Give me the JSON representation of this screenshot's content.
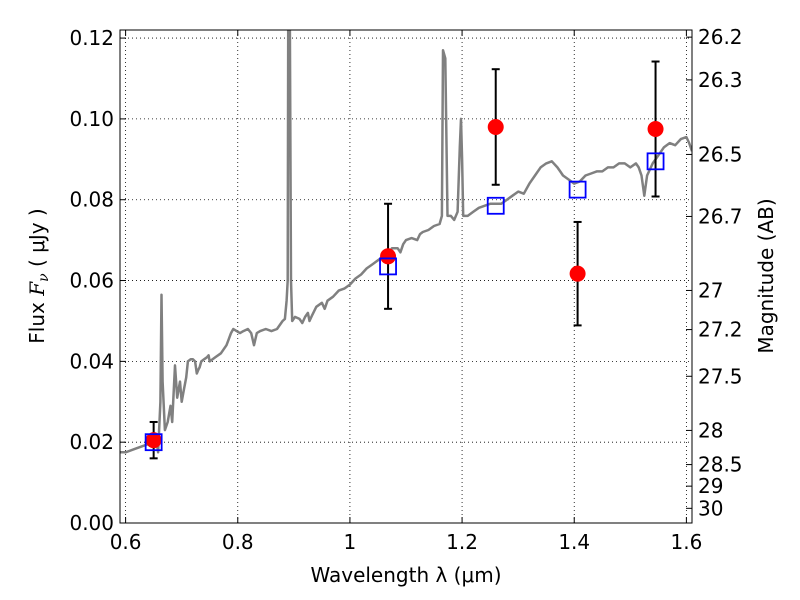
{
  "chart_data": {
    "type": "scatter",
    "xlabel": "Wavelength  λ (μm)",
    "ylabel": "Flux  F_ν  ( μJy )",
    "ylabel_parts": {
      "pre": "Flux  ",
      "var": "F",
      "sub": "ν",
      "post": "  ( μJy )"
    },
    "y2label": "Magnitude (AB)",
    "xlim": [
      0.59,
      1.61
    ],
    "ylim": [
      0.0,
      0.122
    ],
    "grid": true,
    "x_ticks": [
      {
        "v": 0.6,
        "label": "0.6"
      },
      {
        "v": 0.8,
        "label": "0.8"
      },
      {
        "v": 1.0,
        "label": "1"
      },
      {
        "v": 1.2,
        "label": "1.2"
      },
      {
        "v": 1.4,
        "label": "1.4"
      },
      {
        "v": 1.6,
        "label": "1.6"
      }
    ],
    "y_ticks": [
      {
        "v": 0.0,
        "label": "0.00"
      },
      {
        "v": 0.02,
        "label": "0.02"
      },
      {
        "v": 0.04,
        "label": "0.04"
      },
      {
        "v": 0.06,
        "label": "0.06"
      },
      {
        "v": 0.08,
        "label": "0.08"
      },
      {
        "v": 0.1,
        "label": "0.10"
      },
      {
        "v": 0.12,
        "label": "0.12"
      }
    ],
    "mag_ticks": [
      {
        "v": 26.2,
        "label": "26.2"
      },
      {
        "v": 26.3,
        "label": "26.3"
      },
      {
        "v": 26.5,
        "label": "26.5"
      },
      {
        "v": 26.7,
        "label": "26.7"
      },
      {
        "v": 27.0,
        "label": "27"
      },
      {
        "v": 27.2,
        "label": "27.2"
      },
      {
        "v": 27.5,
        "label": "27.5"
      },
      {
        "v": 28.0,
        "label": "28"
      },
      {
        "v": 28.5,
        "label": "28.5"
      },
      {
        "v": 29.0,
        "label": "29"
      },
      {
        "v": 30.0,
        "label": "30"
      }
    ],
    "series": [
      {
        "type": "line",
        "color": "#808080",
        "points": [
          [
            0.59,
            0.0175
          ],
          [
            0.6,
            0.0175
          ],
          [
            0.62,
            0.0185
          ],
          [
            0.64,
            0.0195
          ],
          [
            0.645,
            0.02
          ],
          [
            0.655,
            0.0205
          ],
          [
            0.658,
            0.0175
          ],
          [
            0.662,
            0.03
          ],
          [
            0.664,
            0.0565
          ],
          [
            0.666,
            0.035
          ],
          [
            0.67,
            0.023
          ],
          [
            0.675,
            0.025
          ],
          [
            0.68,
            0.029
          ],
          [
            0.683,
            0.025
          ],
          [
            0.688,
            0.039
          ],
          [
            0.692,
            0.031
          ],
          [
            0.697,
            0.035
          ],
          [
            0.7,
            0.03
          ],
          [
            0.704,
            0.033
          ],
          [
            0.708,
            0.036
          ],
          [
            0.711,
            0.04
          ],
          [
            0.716,
            0.0405
          ],
          [
            0.72,
            0.0405
          ],
          [
            0.724,
            0.04
          ],
          [
            0.727,
            0.037
          ],
          [
            0.73,
            0.038
          ],
          [
            0.732,
            0.0385
          ],
          [
            0.735,
            0.04
          ],
          [
            0.74,
            0.0405
          ],
          [
            0.745,
            0.041
          ],
          [
            0.748,
            0.0415
          ],
          [
            0.75,
            0.04
          ],
          [
            0.76,
            0.041
          ],
          [
            0.77,
            0.042
          ],
          [
            0.78,
            0.044
          ],
          [
            0.784,
            0.0455
          ],
          [
            0.788,
            0.047
          ],
          [
            0.792,
            0.048
          ],
          [
            0.798,
            0.0475
          ],
          [
            0.804,
            0.047
          ],
          [
            0.81,
            0.0475
          ],
          [
            0.818,
            0.048
          ],
          [
            0.824,
            0.047
          ],
          [
            0.829,
            0.044
          ],
          [
            0.834,
            0.047
          ],
          [
            0.84,
            0.0475
          ],
          [
            0.85,
            0.048
          ],
          [
            0.86,
            0.0475
          ],
          [
            0.87,
            0.048
          ],
          [
            0.875,
            0.049
          ],
          [
            0.88,
            0.05
          ],
          [
            0.884,
            0.0505
          ],
          [
            0.887,
            0.055
          ],
          [
            0.889,
            0.06
          ],
          [
            0.89,
            0.122
          ],
          [
            0.893,
            0.122
          ],
          [
            0.895,
            0.06
          ],
          [
            0.897,
            0.05
          ],
          [
            0.902,
            0.051
          ],
          [
            0.91,
            0.0505
          ],
          [
            0.915,
            0.0495
          ],
          [
            0.92,
            0.051
          ],
          [
            0.925,
            0.052
          ],
          [
            0.928,
            0.05
          ],
          [
            0.933,
            0.0515
          ],
          [
            0.94,
            0.0535
          ],
          [
            0.95,
            0.0545
          ],
          [
            0.955,
            0.053
          ],
          [
            0.96,
            0.055
          ],
          [
            0.97,
            0.056
          ],
          [
            0.98,
            0.0575
          ],
          [
            0.99,
            0.058
          ],
          [
            1.0,
            0.059
          ],
          [
            1.01,
            0.0605
          ],
          [
            1.02,
            0.0615
          ],
          [
            1.03,
            0.063
          ],
          [
            1.04,
            0.064
          ],
          [
            1.05,
            0.065
          ],
          [
            1.06,
            0.066
          ],
          [
            1.07,
            0.067
          ],
          [
            1.075,
            0.068
          ],
          [
            1.085,
            0.068
          ],
          [
            1.09,
            0.067
          ],
          [
            1.095,
            0.069
          ],
          [
            1.1,
            0.07
          ],
          [
            1.11,
            0.0705
          ],
          [
            1.12,
            0.07
          ],
          [
            1.125,
            0.0715
          ],
          [
            1.13,
            0.072
          ],
          [
            1.14,
            0.0725
          ],
          [
            1.15,
            0.0735
          ],
          [
            1.16,
            0.074
          ],
          [
            1.164,
            0.076
          ],
          [
            1.166,
            0.117
          ],
          [
            1.17,
            0.115
          ],
          [
            1.174,
            0.076
          ],
          [
            1.18,
            0.076
          ],
          [
            1.186,
            0.075
          ],
          [
            1.192,
            0.077
          ],
          [
            1.196,
            0.093
          ],
          [
            1.198,
            0.1
          ],
          [
            1.2,
            0.09
          ],
          [
            1.202,
            0.076
          ],
          [
            1.21,
            0.076
          ],
          [
            1.22,
            0.077
          ],
          [
            1.23,
            0.078
          ],
          [
            1.24,
            0.0785
          ],
          [
            1.25,
            0.079
          ],
          [
            1.26,
            0.079
          ],
          [
            1.27,
            0.079
          ],
          [
            1.28,
            0.08
          ],
          [
            1.29,
            0.081
          ],
          [
            1.3,
            0.082
          ],
          [
            1.31,
            0.0815
          ],
          [
            1.32,
            0.084
          ],
          [
            1.33,
            0.086
          ],
          [
            1.34,
            0.088
          ],
          [
            1.35,
            0.089
          ],
          [
            1.36,
            0.0895
          ],
          [
            1.37,
            0.088
          ],
          [
            1.375,
            0.087
          ],
          [
            1.38,
            0.086
          ],
          [
            1.39,
            0.085
          ],
          [
            1.4,
            0.084
          ],
          [
            1.41,
            0.0845
          ],
          [
            1.42,
            0.086
          ],
          [
            1.43,
            0.0865
          ],
          [
            1.44,
            0.087
          ],
          [
            1.45,
            0.087
          ],
          [
            1.46,
            0.088
          ],
          [
            1.47,
            0.088
          ],
          [
            1.48,
            0.089
          ],
          [
            1.49,
            0.089
          ],
          [
            1.5,
            0.088
          ],
          [
            1.51,
            0.089
          ],
          [
            1.515,
            0.088
          ],
          [
            1.52,
            0.086
          ],
          [
            1.525,
            0.081
          ],
          [
            1.53,
            0.086
          ],
          [
            1.54,
            0.089
          ],
          [
            1.55,
            0.091
          ],
          [
            1.56,
            0.093
          ],
          [
            1.57,
            0.094
          ],
          [
            1.58,
            0.0935
          ],
          [
            1.59,
            0.095
          ],
          [
            1.6,
            0.0955
          ],
          [
            1.605,
            0.094
          ],
          [
            1.61,
            0.092
          ]
        ]
      },
      {
        "type": "scatter",
        "marker": "circle",
        "color": "#ff0000",
        "points": [
          {
            "x": 0.65,
            "y": 0.0205,
            "yerr": 0.0045
          },
          {
            "x": 1.068,
            "y": 0.066,
            "yerr": 0.013
          },
          {
            "x": 1.26,
            "y": 0.098,
            "yerr": 0.0143
          },
          {
            "x": 1.406,
            "y": 0.0617,
            "yerr": 0.0128
          },
          {
            "x": 1.545,
            "y": 0.0975,
            "yerr": 0.0167
          }
        ]
      },
      {
        "type": "scatter",
        "marker": "square-open",
        "color": "#0000ff",
        "points": [
          {
            "x": 0.65,
            "y": 0.02
          },
          {
            "x": 1.068,
            "y": 0.0635
          },
          {
            "x": 1.26,
            "y": 0.0785
          },
          {
            "x": 1.406,
            "y": 0.0825
          },
          {
            "x": 1.545,
            "y": 0.0895
          }
        ]
      }
    ]
  }
}
